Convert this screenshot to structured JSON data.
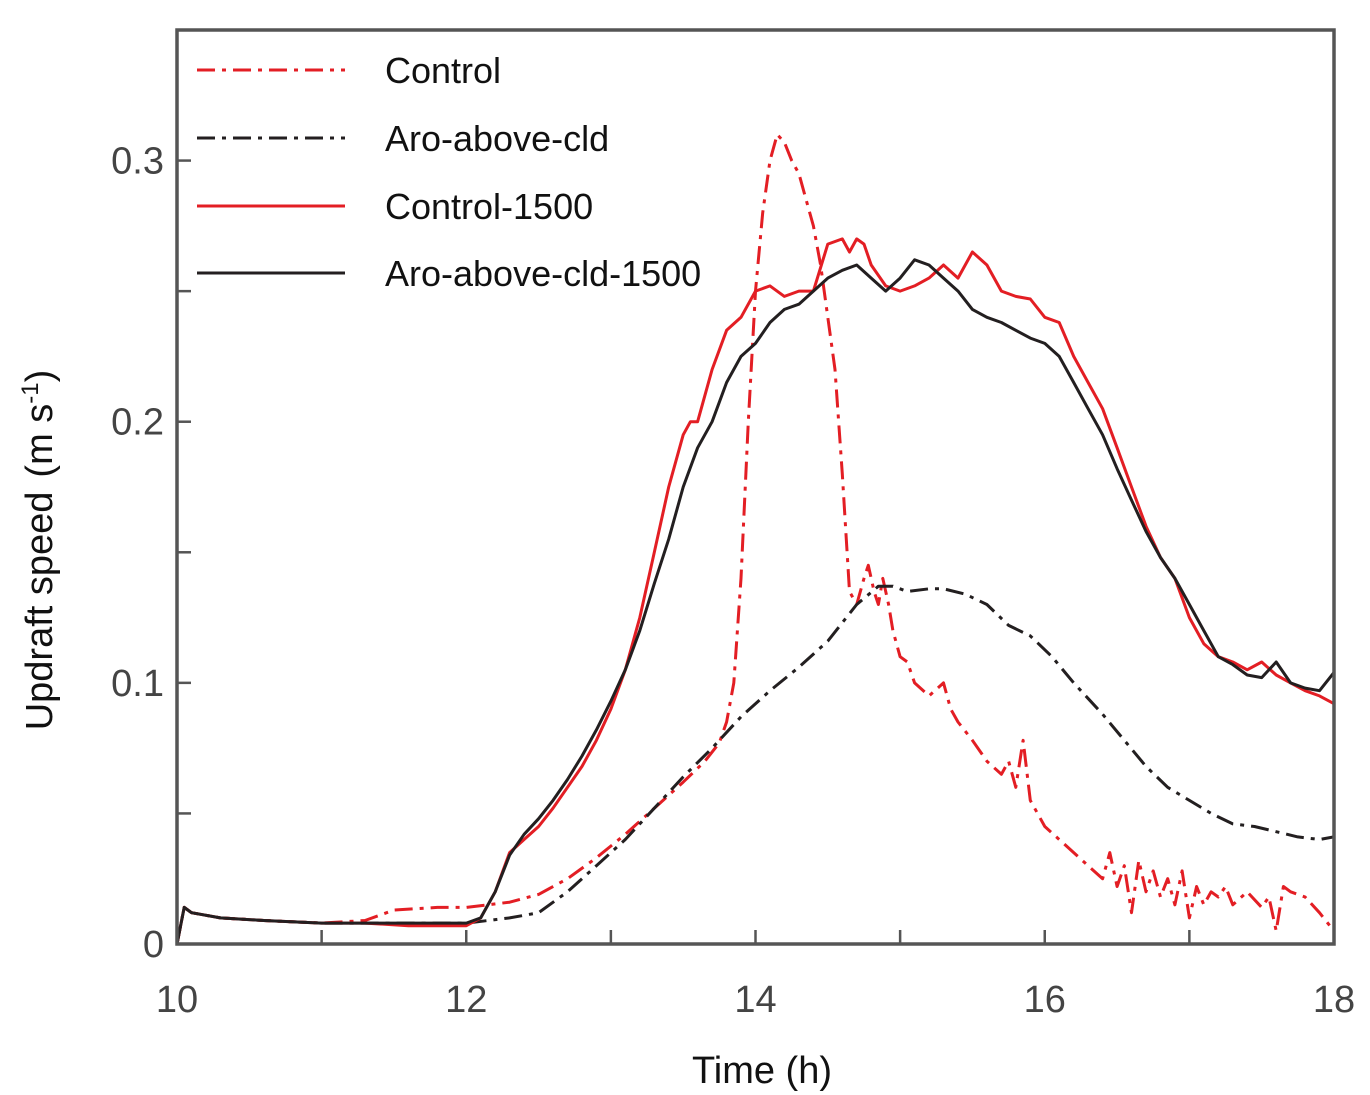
{
  "chart_data": {
    "type": "line",
    "title": "",
    "xlabel": "Time (h)",
    "ylabel": "Updraft speed",
    "ylabel_unit_main": "(m s",
    "ylabel_unit_sup": "-1",
    "ylabel_unit_close": ")",
    "xlim": [
      10,
      18
    ],
    "ylim": [
      0,
      0.35
    ],
    "x_ticks": [
      10,
      12,
      14,
      16,
      18
    ],
    "x_tick_labels": [
      "10",
      "12",
      "14",
      "16",
      "18"
    ],
    "x_minor_ticks": [
      11,
      13,
      15,
      17
    ],
    "y_ticks": [
      0,
      0.1,
      0.2,
      0.3
    ],
    "y_tick_labels": [
      "0",
      "0.1",
      "0.2",
      "0.3"
    ],
    "y_minor_ticks": [
      0.05,
      0.15,
      0.25
    ],
    "grid": false,
    "legend_position": "top-left",
    "series": [
      {
        "name": "Control",
        "color": "#e31e24",
        "style": "dashdot",
        "x": [
          10,
          10.05,
          10.1,
          10.3,
          10.6,
          11,
          11.3,
          11.5,
          11.8,
          12,
          12.15,
          12.3,
          12.5,
          12.7,
          12.9,
          13.1,
          13.3,
          13.5,
          13.65,
          13.75,
          13.8,
          13.85,
          13.9,
          13.95,
          14.0,
          14.05,
          14.1,
          14.15,
          14.2,
          14.25,
          14.3,
          14.35,
          14.4,
          14.45,
          14.5,
          14.55,
          14.6,
          14.65,
          14.7,
          14.75,
          14.78,
          14.82,
          14.85,
          14.88,
          14.92,
          14.95,
          15.0,
          15.05,
          15.1,
          15.2,
          15.3,
          15.35,
          15.4,
          15.5,
          15.6,
          15.7,
          15.75,
          15.8,
          15.85,
          15.9,
          16.0,
          16.1,
          16.2,
          16.3,
          16.4,
          16.45,
          16.5,
          16.55,
          16.6,
          16.65,
          16.7,
          16.75,
          16.8,
          16.85,
          16.9,
          16.95,
          17.0,
          17.05,
          17.1,
          17.15,
          17.2,
          17.25,
          17.3,
          17.4,
          17.5,
          17.55,
          17.6,
          17.65,
          17.7,
          17.8,
          17.9,
          18.0
        ],
        "y": [
          0,
          0.014,
          0.012,
          0.01,
          0.009,
          0.008,
          0.009,
          0.013,
          0.014,
          0.014,
          0.015,
          0.016,
          0.019,
          0.025,
          0.033,
          0.042,
          0.052,
          0.062,
          0.07,
          0.077,
          0.085,
          0.1,
          0.14,
          0.2,
          0.25,
          0.28,
          0.3,
          0.31,
          0.307,
          0.3,
          0.295,
          0.285,
          0.275,
          0.26,
          0.24,
          0.22,
          0.18,
          0.135,
          0.13,
          0.14,
          0.145,
          0.135,
          0.13,
          0.14,
          0.13,
          0.12,
          0.11,
          0.108,
          0.1,
          0.095,
          0.1,
          0.09,
          0.085,
          0.078,
          0.07,
          0.065,
          0.07,
          0.06,
          0.078,
          0.055,
          0.045,
          0.04,
          0.035,
          0.03,
          0.025,
          0.035,
          0.022,
          0.03,
          0.012,
          0.032,
          0.02,
          0.028,
          0.018,
          0.025,
          0.015,
          0.028,
          0.01,
          0.022,
          0.015,
          0.02,
          0.018,
          0.022,
          0.015,
          0.02,
          0.014,
          0.018,
          0.005,
          0.022,
          0.02,
          0.018,
          0.012,
          0.005
        ]
      },
      {
        "name": "Aro-above-cld",
        "color": "#231f20",
        "style": "dashdot",
        "x": [
          10,
          10.05,
          10.1,
          10.3,
          10.6,
          11,
          11.3,
          11.6,
          12.0,
          12.3,
          12.5,
          12.7,
          12.9,
          13.1,
          13.3,
          13.5,
          13.7,
          13.9,
          14.1,
          14.3,
          14.5,
          14.7,
          14.85,
          14.95,
          15.05,
          15.2,
          15.3,
          15.45,
          15.6,
          15.75,
          15.9,
          16.05,
          16.2,
          16.4,
          16.55,
          16.7,
          16.85,
          17.0,
          17.15,
          17.3,
          17.45,
          17.6,
          17.75,
          17.9,
          18.0
        ],
        "y": [
          0,
          0.014,
          0.012,
          0.01,
          0.009,
          0.008,
          0.008,
          0.008,
          0.008,
          0.01,
          0.012,
          0.02,
          0.03,
          0.04,
          0.052,
          0.064,
          0.075,
          0.087,
          0.097,
          0.106,
          0.116,
          0.13,
          0.137,
          0.137,
          0.135,
          0.136,
          0.136,
          0.134,
          0.13,
          0.122,
          0.118,
          0.11,
          0.1,
          0.088,
          0.078,
          0.068,
          0.06,
          0.055,
          0.05,
          0.046,
          0.045,
          0.043,
          0.041,
          0.04,
          0.041
        ]
      },
      {
        "name": "Control-1500",
        "color": "#e31e24",
        "style": "solid",
        "x": [
          10,
          10.05,
          10.1,
          10.3,
          10.6,
          11,
          11.3,
          11.6,
          12.0,
          12.1,
          12.2,
          12.3,
          12.4,
          12.5,
          12.6,
          12.7,
          12.8,
          12.9,
          13.0,
          13.1,
          13.2,
          13.3,
          13.4,
          13.5,
          13.55,
          13.6,
          13.7,
          13.8,
          13.9,
          14.0,
          14.1,
          14.2,
          14.3,
          14.4,
          14.5,
          14.6,
          14.65,
          14.7,
          14.75,
          14.8,
          14.9,
          15.0,
          15.1,
          15.2,
          15.3,
          15.4,
          15.5,
          15.6,
          15.7,
          15.8,
          15.9,
          16.0,
          16.1,
          16.2,
          16.3,
          16.4,
          16.5,
          16.6,
          16.7,
          16.8,
          16.9,
          17.0,
          17.1,
          17.2,
          17.3,
          17.4,
          17.5,
          17.6,
          17.7,
          17.8,
          17.9,
          18.0
        ],
        "y": [
          0,
          0.014,
          0.012,
          0.01,
          0.009,
          0.008,
          0.008,
          0.007,
          0.007,
          0.01,
          0.02,
          0.035,
          0.04,
          0.045,
          0.052,
          0.06,
          0.068,
          0.078,
          0.09,
          0.105,
          0.125,
          0.15,
          0.175,
          0.195,
          0.2,
          0.2,
          0.22,
          0.235,
          0.24,
          0.25,
          0.252,
          0.248,
          0.25,
          0.25,
          0.268,
          0.27,
          0.265,
          0.27,
          0.268,
          0.26,
          0.252,
          0.25,
          0.252,
          0.255,
          0.26,
          0.255,
          0.265,
          0.26,
          0.25,
          0.248,
          0.247,
          0.24,
          0.238,
          0.225,
          0.215,
          0.205,
          0.19,
          0.175,
          0.16,
          0.148,
          0.14,
          0.125,
          0.115,
          0.11,
          0.108,
          0.105,
          0.108,
          0.103,
          0.1,
          0.097,
          0.095,
          0.092
        ]
      },
      {
        "name": "Aro-above-cld-1500",
        "color": "#231f20",
        "style": "solid",
        "x": [
          10,
          10.05,
          10.1,
          10.3,
          10.6,
          11,
          11.3,
          11.6,
          12.0,
          12.1,
          12.2,
          12.3,
          12.4,
          12.5,
          12.6,
          12.7,
          12.8,
          12.9,
          13.0,
          13.1,
          13.2,
          13.3,
          13.4,
          13.5,
          13.6,
          13.7,
          13.8,
          13.9,
          14.0,
          14.1,
          14.2,
          14.3,
          14.4,
          14.5,
          14.6,
          14.7,
          14.8,
          14.9,
          15.0,
          15.1,
          15.2,
          15.3,
          15.4,
          15.5,
          15.6,
          15.7,
          15.8,
          15.9,
          16.0,
          16.1,
          16.2,
          16.3,
          16.4,
          16.5,
          16.6,
          16.7,
          16.8,
          16.9,
          17.0,
          17.1,
          17.2,
          17.3,
          17.4,
          17.5,
          17.6,
          17.7,
          17.8,
          17.9,
          18.0
        ],
        "y": [
          0,
          0.014,
          0.012,
          0.01,
          0.009,
          0.008,
          0.008,
          0.008,
          0.008,
          0.01,
          0.02,
          0.034,
          0.042,
          0.048,
          0.055,
          0.063,
          0.072,
          0.082,
          0.093,
          0.105,
          0.12,
          0.138,
          0.155,
          0.175,
          0.19,
          0.2,
          0.215,
          0.225,
          0.23,
          0.238,
          0.243,
          0.245,
          0.25,
          0.255,
          0.258,
          0.26,
          0.255,
          0.25,
          0.255,
          0.262,
          0.26,
          0.255,
          0.25,
          0.243,
          0.24,
          0.238,
          0.235,
          0.232,
          0.23,
          0.225,
          0.215,
          0.205,
          0.195,
          0.182,
          0.17,
          0.158,
          0.148,
          0.14,
          0.13,
          0.12,
          0.11,
          0.107,
          0.103,
          0.102,
          0.108,
          0.1,
          0.098,
          0.097,
          0.104
        ]
      }
    ]
  }
}
